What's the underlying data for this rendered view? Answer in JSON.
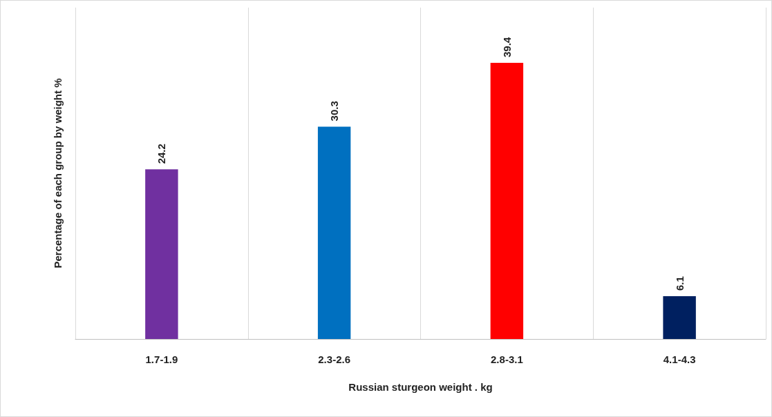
{
  "chart_data": {
    "type": "bar",
    "xlabel": "Russian sturgeon weight . kg",
    "ylabel": "Percentage of each group by weight %",
    "categories": [
      "1.7-1.9",
      "2.3-2.6",
      "2.8-3.1",
      "4.1-4.3"
    ],
    "values": [
      24.2,
      30.3,
      39.4,
      6.1
    ],
    "colors": [
      "#7030a0",
      "#0070c0",
      "#ff0000",
      "#002060"
    ],
    "data_labels": true,
    "grid": "x"
  }
}
